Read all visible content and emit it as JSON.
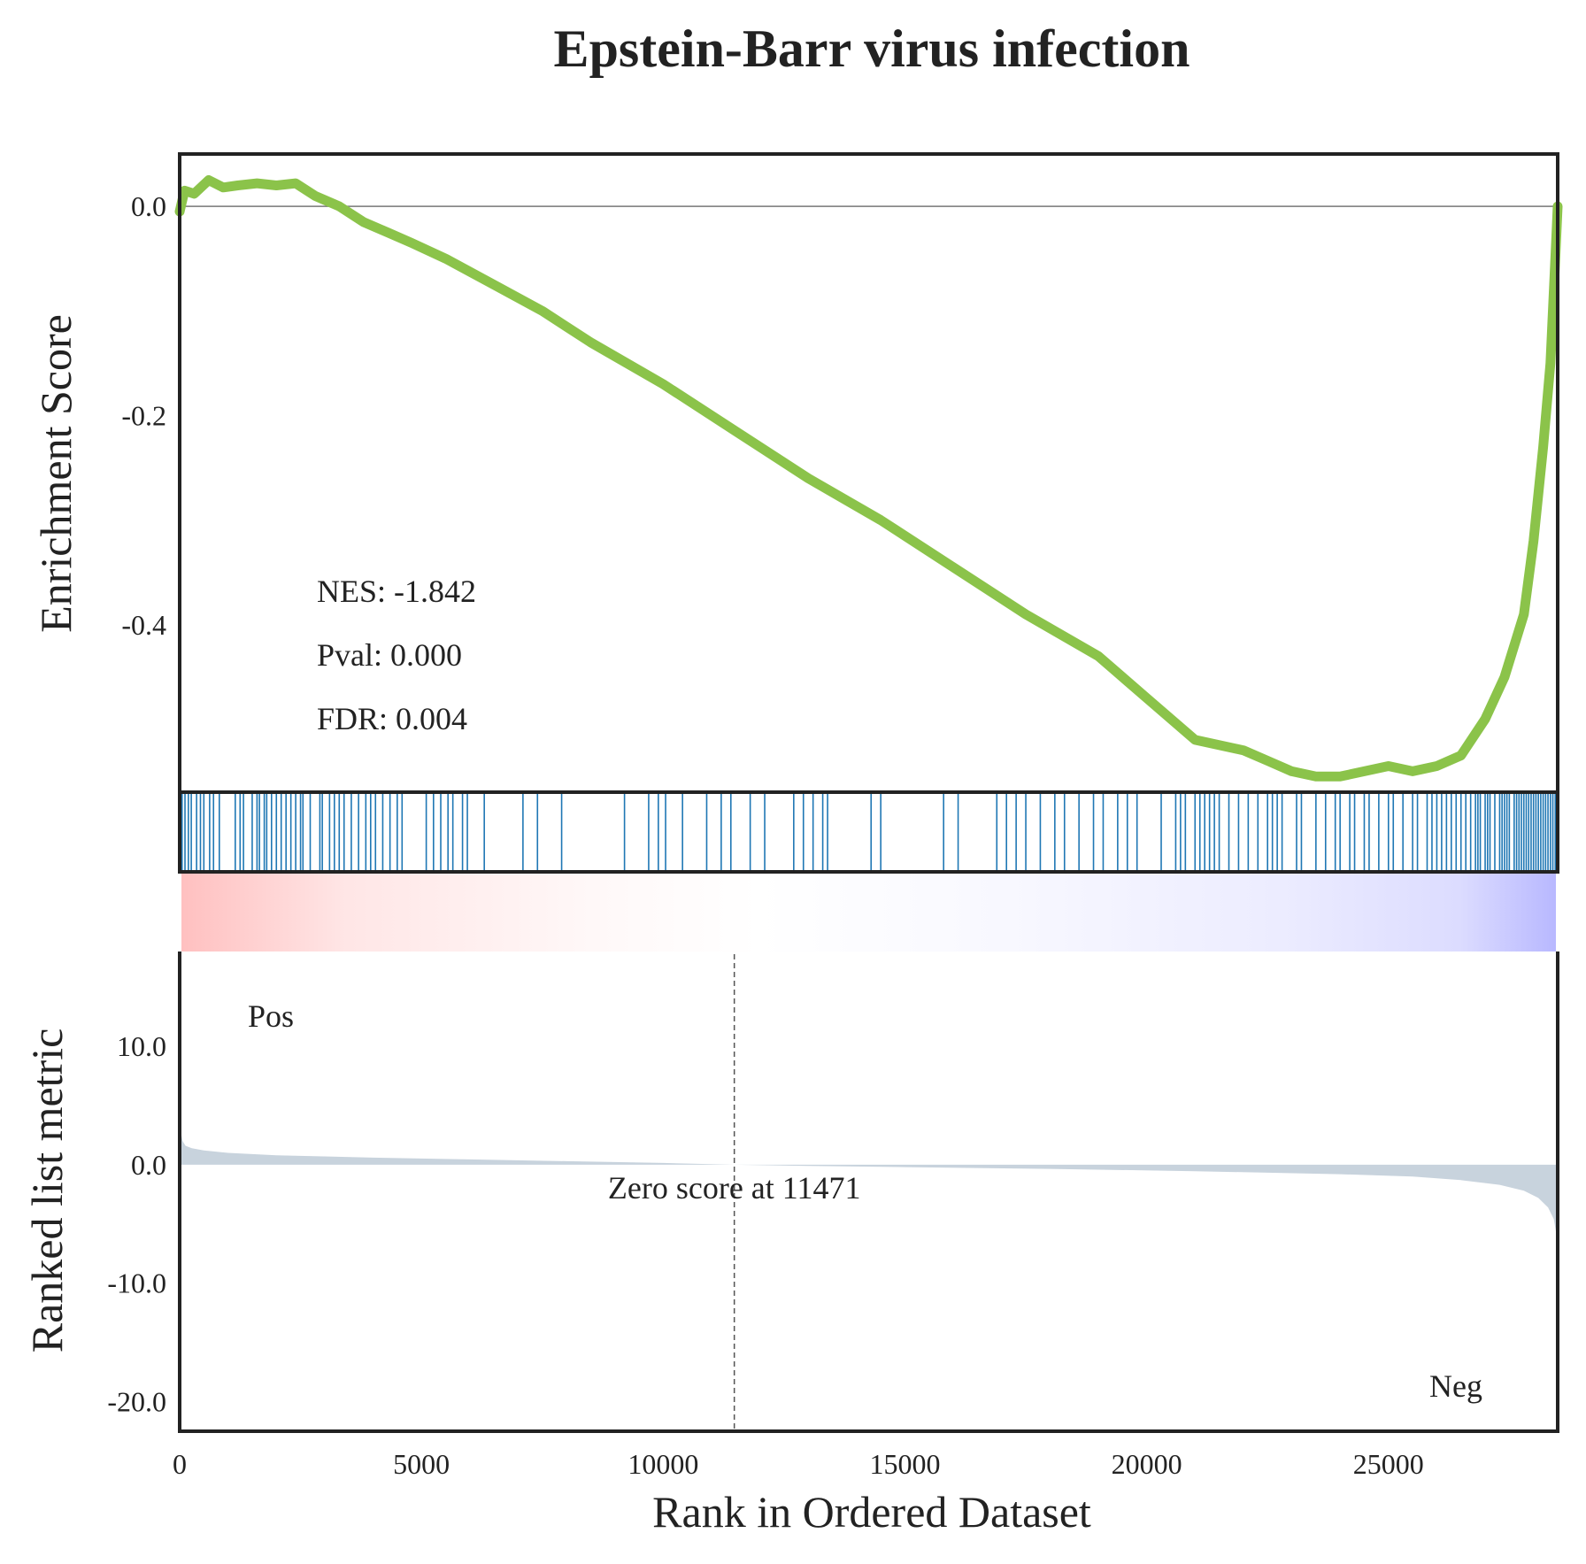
{
  "chart_data": {
    "type": "line",
    "title": "Epstein-Barr virus infection",
    "xlabel": "Rank in Ordered Dataset",
    "xlim": [
      0,
      28500
    ],
    "x_ticks": [
      "0",
      "5000",
      "10000",
      "15000",
      "20000",
      "25000"
    ],
    "x_tick_values": [
      0,
      5000,
      10000,
      15000,
      20000,
      25000
    ],
    "colors": {
      "es_line": "#8bc34a",
      "hits": "#1f77b4",
      "metric_fill": "#c8d3dd",
      "pos": "#ff0000",
      "neg": "#0000ff"
    },
    "es_panel": {
      "ylabel": "Enrichment Score",
      "ylim": [
        -0.56,
        0.05
      ],
      "y_ticks": [
        "0.0",
        "-0.2",
        "-0.4"
      ],
      "y_tick_values": [
        0.0,
        -0.2,
        -0.4
      ],
      "series": [
        {
          "x": [
            0,
            100,
            300,
            600,
            900,
            1200,
            1600,
            2000,
            2400,
            2800,
            3300,
            3800,
            4300,
            4800,
            5500,
            6500,
            7500,
            8500,
            10000,
            11500,
            13000,
            14500,
            16000,
            17500,
            19000,
            20000,
            21000,
            22000,
            22500,
            23000,
            23500,
            24000,
            24500,
            25000,
            25500,
            26000,
            26500,
            27000,
            27400,
            27800,
            28000,
            28200,
            28350,
            28450,
            28500
          ],
          "y": [
            -0.005,
            0.015,
            0.012,
            0.025,
            0.018,
            0.02,
            0.022,
            0.02,
            0.022,
            0.01,
            0.0,
            -0.015,
            -0.025,
            -0.035,
            -0.05,
            -0.075,
            -0.1,
            -0.13,
            -0.17,
            -0.215,
            -0.26,
            -0.3,
            -0.345,
            -0.39,
            -0.43,
            -0.47,
            -0.51,
            -0.52,
            -0.53,
            -0.54,
            -0.545,
            -0.545,
            -0.54,
            -0.535,
            -0.54,
            -0.535,
            -0.525,
            -0.49,
            -0.45,
            -0.39,
            -0.32,
            -0.23,
            -0.15,
            -0.05,
            0.0
          ]
        }
      ],
      "annotations": [
        "NES: -1.842",
        "Pval: 0.000",
        "FDR: 0.004"
      ]
    },
    "hits": [
      50,
      110,
      180,
      240,
      350,
      430,
      500,
      620,
      700,
      820,
      1150,
      1250,
      1320,
      1500,
      1600,
      1650,
      1750,
      1800,
      1900,
      2000,
      2100,
      2200,
      2300,
      2400,
      2500,
      2550,
      2700,
      2900,
      2950,
      3100,
      3200,
      3300,
      3400,
      3550,
      3700,
      3850,
      3950,
      4050,
      4200,
      4350,
      4500,
      4600,
      5100,
      5250,
      5400,
      5550,
      5650,
      5850,
      5950,
      6300,
      7100,
      7400,
      7900,
      9200,
      9700,
      9900,
      10050,
      10400,
      10900,
      11200,
      11400,
      11800,
      12100,
      12700,
      12900,
      13100,
      13300,
      13400,
      14300,
      14500,
      15800,
      16100,
      16900,
      17100,
      17300,
      17500,
      17800,
      18100,
      18300,
      18600,
      18900,
      19100,
      19400,
      19600,
      19800,
      20300,
      20600,
      20700,
      20800,
      21000,
      21100,
      21200,
      21300,
      21400,
      21500,
      21700,
      21900,
      22100,
      22300,
      22500,
      22600,
      22700,
      22800,
      23100,
      23200,
      23500,
      23700,
      23900,
      24000,
      24200,
      24300,
      24500,
      24600,
      24800,
      25000,
      25100,
      25300,
      25500,
      25600,
      25800,
      25900,
      26000,
      26100,
      26200,
      26300,
      26400,
      26500,
      26600,
      26700,
      26800,
      26850,
      26900,
      27000,
      27050,
      27100,
      27200,
      27300,
      27350,
      27400,
      27450,
      27500,
      27600,
      27650,
      27700,
      27750,
      27800,
      27850,
      27900,
      27950,
      28000,
      28050,
      28100,
      28150,
      28200,
      28250,
      28300,
      28350,
      28400,
      28450
    ],
    "metric_panel": {
      "ylabel": "Ranked list metric",
      "ylim": [
        -22.5,
        18
      ],
      "y_ticks": [
        "10.0",
        "0.0",
        "-10.0",
        "-20.0"
      ],
      "y_tick_values": [
        10.0,
        0.0,
        -10.0,
        -20.0
      ],
      "series": [
        {
          "x": [
            0,
            20,
            60,
            120,
            250,
            500,
            1000,
            2000,
            4000,
            6000,
            8000,
            10000,
            11471,
            13000,
            15000,
            18000,
            21000,
            24000,
            25500,
            26500,
            27300,
            27800,
            28100,
            28300,
            28420,
            28480,
            28500
          ],
          "y": [
            4.0,
            2.8,
            2.0,
            1.6,
            1.4,
            1.2,
            1.0,
            0.8,
            0.6,
            0.45,
            0.3,
            0.15,
            0.0,
            -0.1,
            -0.2,
            -0.35,
            -0.55,
            -0.8,
            -1.0,
            -1.3,
            -1.7,
            -2.2,
            -2.8,
            -3.6,
            -4.6,
            -6.0,
            -8.0
          ]
        }
      ],
      "zero_cross": 11471,
      "zero_label": "Zero score at 11471",
      "pos_label": "Pos",
      "neg_label": "Neg"
    }
  }
}
